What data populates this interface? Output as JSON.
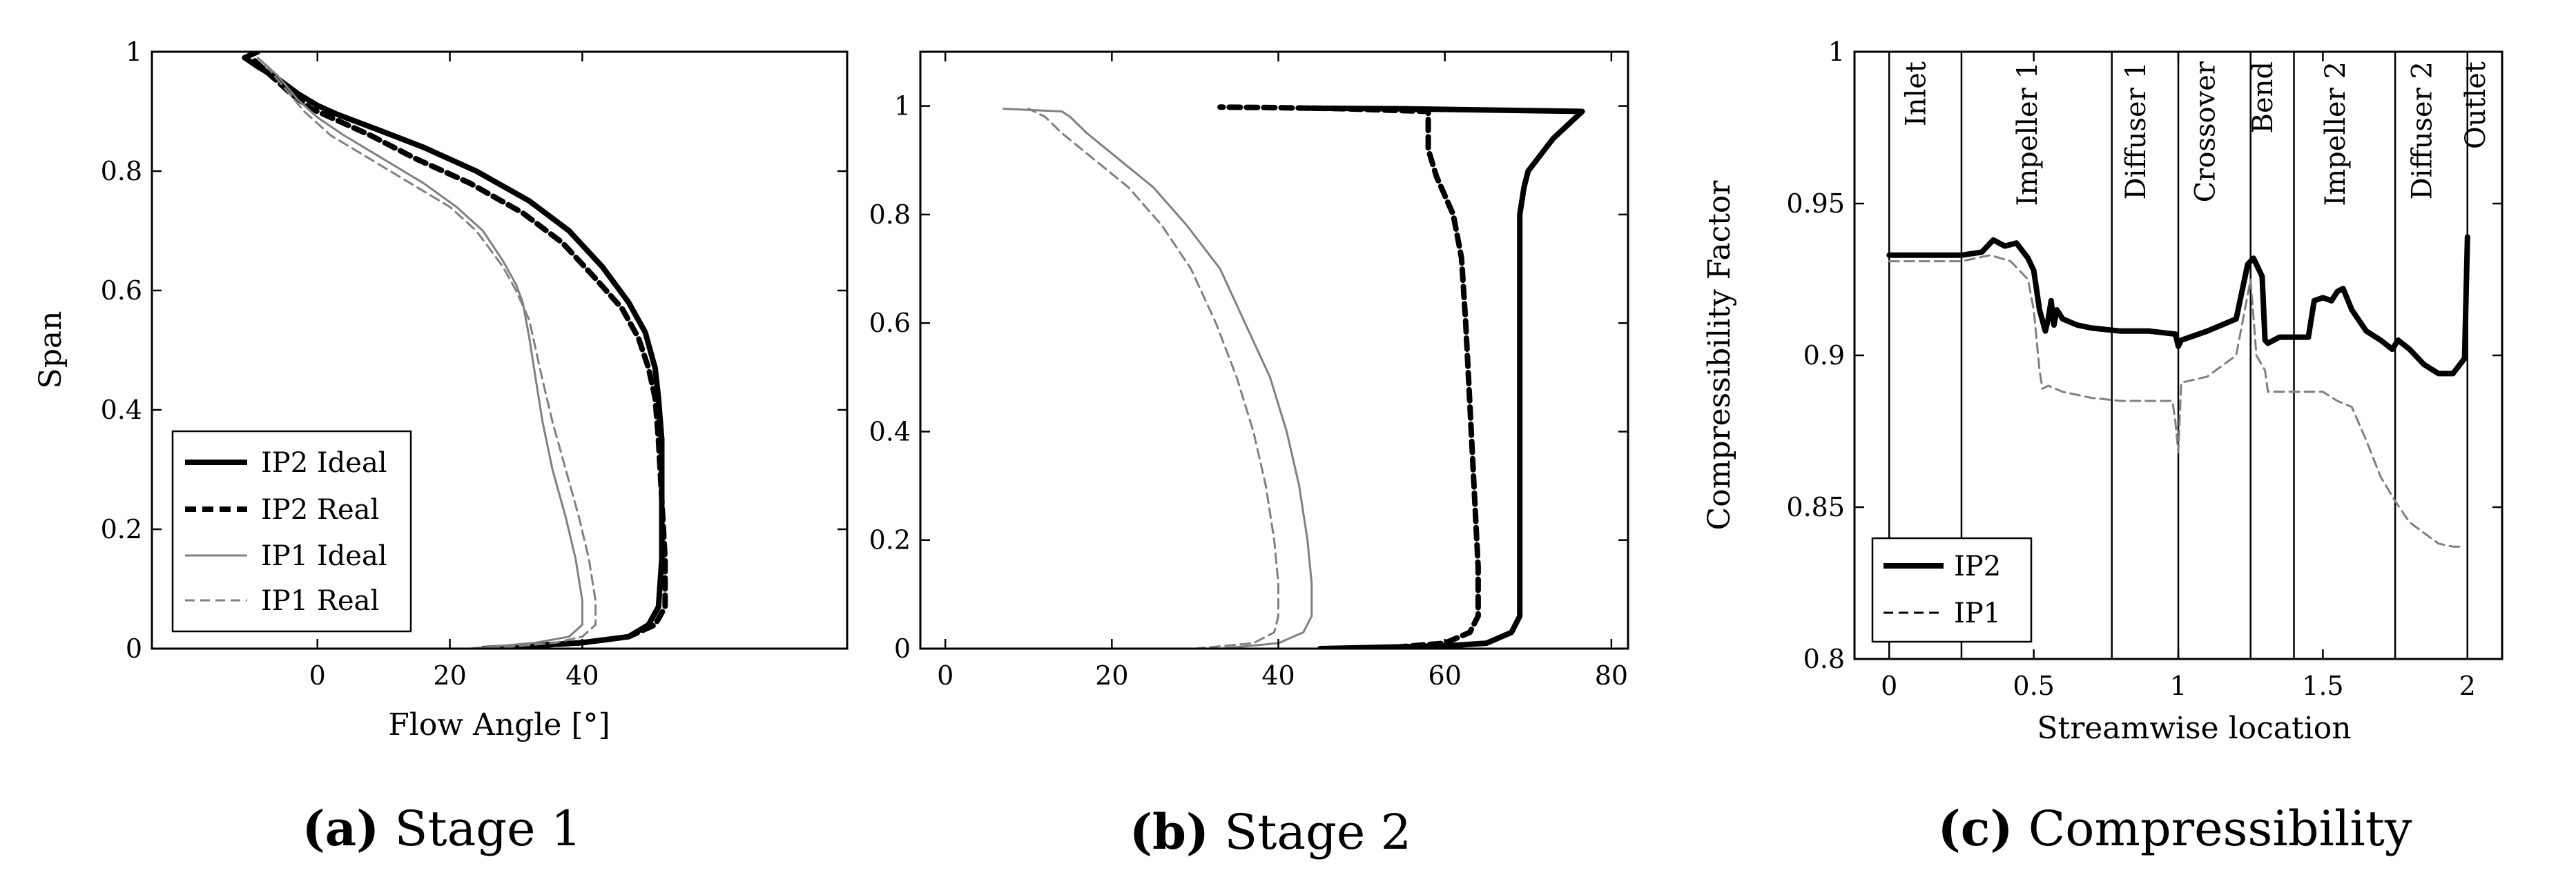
{
  "chart_data": [
    {
      "type": "line",
      "caption_letter": "(a)",
      "caption_text": "Stage 1",
      "xlabel": "Flow Angle [°]",
      "ylabel": "Span",
      "xlim": [
        -25,
        80
      ],
      "ylim": [
        0,
        1
      ],
      "xticks": [
        0,
        20,
        40
      ],
      "yticks": [
        0,
        0.2,
        0.4,
        0.6,
        0.8,
        1
      ],
      "ytick_labels": [
        "0",
        "0.2",
        "0.4",
        "0.6",
        "0.8",
        "1"
      ],
      "grid": false,
      "legend_position": "bottom-left",
      "series": [
        {
          "name": "IP2 Ideal",
          "style": "thick-solid",
          "x": [
            25,
            40,
            47,
            50,
            51.5,
            52,
            52,
            52,
            51.5,
            51,
            49.5,
            47,
            43,
            38,
            32,
            24,
            16,
            9,
            3,
            0,
            -3,
            -6,
            -9,
            -11,
            -9
          ],
          "y": [
            0,
            0.01,
            0.02,
            0.04,
            0.07,
            0.15,
            0.25,
            0.35,
            0.42,
            0.47,
            0.53,
            0.58,
            0.64,
            0.7,
            0.75,
            0.8,
            0.84,
            0.87,
            0.895,
            0.91,
            0.93,
            0.955,
            0.975,
            0.99,
            1.0
          ]
        },
        {
          "name": "IP2 Real",
          "style": "thick-dashed",
          "x": [
            26,
            40,
            47,
            51,
            52.5,
            52.5,
            52,
            51.5,
            51,
            50,
            48.5,
            46,
            42,
            37,
            31,
            23,
            15,
            8,
            2,
            -1,
            -4,
            -7,
            -10
          ],
          "y": [
            0,
            0.01,
            0.02,
            0.04,
            0.07,
            0.15,
            0.25,
            0.35,
            0.42,
            0.47,
            0.52,
            0.57,
            0.62,
            0.68,
            0.73,
            0.78,
            0.82,
            0.86,
            0.89,
            0.905,
            0.93,
            0.96,
            0.99
          ]
        },
        {
          "name": "IP1 Ideal",
          "style": "thin-solid",
          "x": [
            23,
            33,
            38,
            40,
            40,
            39,
            37.5,
            35.5,
            34,
            33,
            32,
            31,
            30,
            28,
            25,
            21,
            16,
            10,
            4,
            0,
            -3,
            -6,
            -9
          ],
          "y": [
            0,
            0.01,
            0.02,
            0.04,
            0.08,
            0.15,
            0.22,
            0.3,
            0.38,
            0.45,
            0.52,
            0.58,
            0.61,
            0.65,
            0.7,
            0.74,
            0.78,
            0.82,
            0.86,
            0.89,
            0.92,
            0.96,
            0.99
          ]
        },
        {
          "name": "IP1 Real",
          "style": "thin-dashed",
          "x": [
            26,
            36,
            40,
            42,
            42,
            41,
            39.5,
            37.5,
            35.5,
            34,
            33,
            32,
            30,
            28,
            26,
            24,
            20,
            14,
            8,
            2,
            -2,
            -5,
            -8
          ],
          "y": [
            0,
            0.01,
            0.02,
            0.04,
            0.08,
            0.15,
            0.22,
            0.3,
            0.38,
            0.45,
            0.5,
            0.55,
            0.6,
            0.64,
            0.67,
            0.7,
            0.74,
            0.78,
            0.82,
            0.86,
            0.9,
            0.94,
            0.98
          ]
        }
      ]
    },
    {
      "type": "line",
      "caption_letter": "(b)",
      "caption_text": "Stage 2",
      "xlabel": "",
      "ylabel": "",
      "xlim": [
        -3,
        82
      ],
      "ylim": [
        0,
        1.1
      ],
      "xticks": [
        0,
        20,
        40,
        60,
        80
      ],
      "yticks": [
        0,
        0.2,
        0.4,
        0.6,
        0.8,
        1
      ],
      "ytick_labels": [
        "0",
        "0.2",
        "0.4",
        "0.6",
        "0.8",
        "1"
      ],
      "grid": false,
      "series": [
        {
          "name": "IP2 Ideal",
          "style": "thick-solid",
          "x": [
            45,
            60,
            65,
            68,
            69,
            69,
            69,
            69,
            69,
            69,
            69.5,
            70,
            73,
            76.5,
            55,
            44
          ],
          "y": [
            0,
            0.005,
            0.01,
            0.03,
            0.06,
            0.15,
            0.3,
            0.5,
            0.7,
            0.8,
            0.85,
            0.88,
            0.94,
            0.99,
            0.995,
            0.996
          ]
        },
        {
          "name": "IP2 Real",
          "style": "thick-dashed",
          "x": [
            52,
            60,
            63,
            64,
            64,
            63.5,
            63,
            62.5,
            62,
            61,
            59,
            58,
            58,
            48,
            40,
            33
          ],
          "y": [
            0,
            0.01,
            0.03,
            0.06,
            0.15,
            0.3,
            0.45,
            0.6,
            0.72,
            0.8,
            0.87,
            0.92,
            0.99,
            0.995,
            0.997,
            0.998
          ]
        },
        {
          "name": "IP1 Ideal",
          "style": "thin-solid",
          "x": [
            33,
            40,
            43,
            44,
            44,
            43.5,
            42.5,
            41,
            39,
            36,
            33,
            29,
            25,
            21,
            17,
            15,
            14,
            7
          ],
          "y": [
            0,
            0.01,
            0.03,
            0.06,
            0.12,
            0.2,
            0.3,
            0.4,
            0.5,
            0.6,
            0.7,
            0.78,
            0.85,
            0.9,
            0.95,
            0.98,
            0.99,
            0.995
          ]
        },
        {
          "name": "IP1 Real",
          "style": "thin-dashed",
          "x": [
            30,
            37,
            39.5,
            40,
            40,
            39.5,
            38.5,
            37,
            35,
            32.5,
            29.5,
            26,
            22,
            18,
            14,
            12,
            10
          ],
          "y": [
            0,
            0.01,
            0.03,
            0.06,
            0.12,
            0.2,
            0.3,
            0.4,
            0.5,
            0.6,
            0.7,
            0.78,
            0.85,
            0.9,
            0.95,
            0.98,
            0.995
          ]
        }
      ]
    },
    {
      "type": "line",
      "caption_letter": "(c)",
      "caption_text": "Compressibility",
      "xlabel": "Streamwise location",
      "ylabel": "Compressibility Factor",
      "xlim": [
        -0.12,
        2.12
      ],
      "ylim": [
        0.8,
        1.0
      ],
      "xticks": [
        0,
        0.5,
        1,
        1.5,
        2
      ],
      "yticks": [
        0.8,
        0.85,
        0.9,
        0.95,
        1.0
      ],
      "ytick_labels": [
        "0.8",
        "0.85",
        "0.9",
        "0.95",
        "1"
      ],
      "grid": false,
      "legend_position": "bottom-left",
      "regions": [
        {
          "label": "Inlet",
          "start": 0,
          "end": 0.25
        },
        {
          "label": "Impeller 1",
          "start": 0.25,
          "end": 0.77
        },
        {
          "label": "Diffuser 1",
          "start": 0.77,
          "end": 1.0
        },
        {
          "label": "Crossover",
          "start": 1.0,
          "end": 1.25
        },
        {
          "label": "Bend",
          "start": 1.25,
          "end": 1.4
        },
        {
          "label": "Impeller 2",
          "start": 1.4,
          "end": 1.75
        },
        {
          "label": "Diffuser 2",
          "start": 1.75,
          "end": 2.0
        },
        {
          "label": "Outlet",
          "start": 2.0,
          "end": 2.12
        }
      ],
      "series": [
        {
          "name": "IP2",
          "style": "thick-solid",
          "x": [
            0,
            0.25,
            0.32,
            0.36,
            0.4,
            0.44,
            0.48,
            0.5,
            0.52,
            0.54,
            0.55,
            0.56,
            0.57,
            0.58,
            0.6,
            0.65,
            0.7,
            0.8,
            0.9,
            0.99,
            1.0,
            1.01,
            1.1,
            1.2,
            1.24,
            1.26,
            1.29,
            1.3,
            1.31,
            1.35,
            1.4,
            1.45,
            1.47,
            1.5,
            1.53,
            1.55,
            1.57,
            1.6,
            1.65,
            1.7,
            1.74,
            1.76,
            1.8,
            1.85,
            1.9,
            1.95,
            1.99,
            2.0
          ],
          "y": [
            0.933,
            0.933,
            0.934,
            0.938,
            0.936,
            0.937,
            0.932,
            0.928,
            0.915,
            0.908,
            0.912,
            0.918,
            0.91,
            0.915,
            0.912,
            0.91,
            0.909,
            0.908,
            0.908,
            0.907,
            0.903,
            0.905,
            0.908,
            0.912,
            0.93,
            0.932,
            0.926,
            0.905,
            0.904,
            0.906,
            0.906,
            0.906,
            0.918,
            0.919,
            0.918,
            0.921,
            0.922,
            0.915,
            0.908,
            0.905,
            0.902,
            0.905,
            0.902,
            0.897,
            0.894,
            0.894,
            0.899,
            0.939
          ]
        },
        {
          "name": "IP1",
          "style": "thin-dashed",
          "x": [
            0,
            0.25,
            0.35,
            0.42,
            0.48,
            0.5,
            0.52,
            0.53,
            0.55,
            0.6,
            0.7,
            0.8,
            0.9,
            0.98,
            0.99,
            1.0,
            1.01,
            1.1,
            1.2,
            1.25,
            1.27,
            1.3,
            1.31,
            1.4,
            1.5,
            1.55,
            1.6,
            1.65,
            1.7,
            1.75,
            1.8,
            1.9,
            1.95,
            1.98
          ],
          "y": [
            0.931,
            0.931,
            0.933,
            0.931,
            0.925,
            0.915,
            0.895,
            0.889,
            0.89,
            0.888,
            0.886,
            0.885,
            0.885,
            0.885,
            0.878,
            0.868,
            0.891,
            0.893,
            0.9,
            0.925,
            0.9,
            0.895,
            0.888,
            0.888,
            0.888,
            0.885,
            0.883,
            0.872,
            0.86,
            0.852,
            0.845,
            0.838,
            0.837,
            0.837
          ]
        }
      ]
    }
  ]
}
